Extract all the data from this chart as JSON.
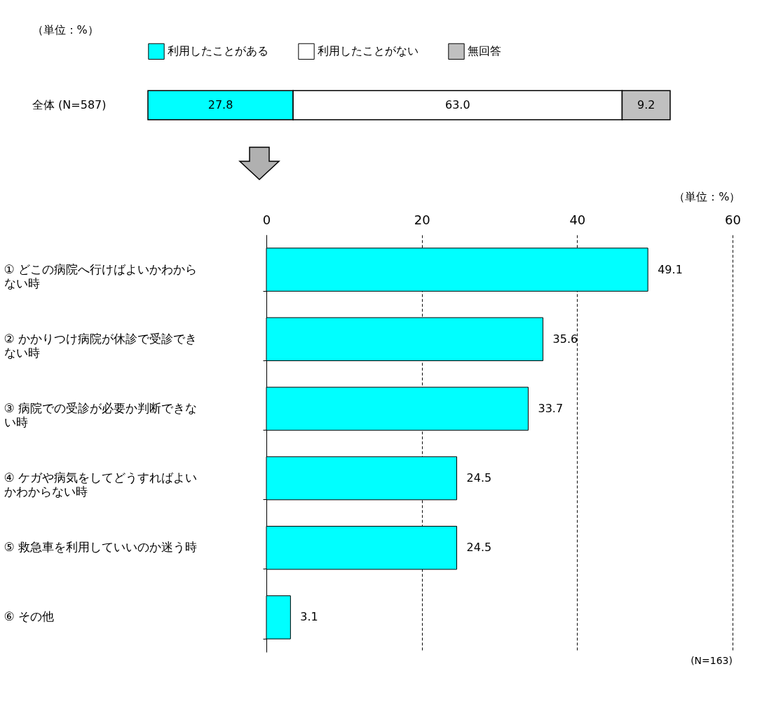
{
  "chart_data": [
    {
      "type": "bar",
      "orientation": "horizontal",
      "stacked": true,
      "categories": [
        "全体 (N=587)"
      ],
      "legend": "top",
      "annotations": [
        "（単位：%）"
      ],
      "series": [
        {
          "name": "利用したことがある",
          "color": "#00ffff",
          "values": [
            27.8
          ],
          "value_labels": [
            "27.8"
          ]
        },
        {
          "name": "利用したことがない",
          "color": "#ffffff",
          "values": [
            63.0
          ],
          "value_labels": [
            "63.0"
          ]
        },
        {
          "name": "無回答",
          "color": "#c0c0c0",
          "values": [
            9.2
          ],
          "value_labels": [
            "9.2"
          ]
        }
      ]
    },
    {
      "type": "bar",
      "orientation": "horizontal",
      "categories": [
        "① どこの病院へ行けばよいかわからない時",
        "② かかりつけ病院が休診で受診できない時",
        "③ 病院での受診が必要か判断できない時",
        "④ ケガや病気をしてどうすればよいかわからない時",
        "⑤ 救急車を利用していいのか迷う時",
        "⑥ その他"
      ],
      "values": [
        49.1,
        35.6,
        33.7,
        24.5,
        24.5,
        3.1
      ],
      "color": "#00ffff",
      "data_labels": true,
      "xlim": [
        0,
        60
      ],
      "xticks": [
        0,
        20,
        40,
        60
      ],
      "grid": "x",
      "annotations": [
        "（単位：%）",
        "(N=163)"
      ]
    }
  ]
}
